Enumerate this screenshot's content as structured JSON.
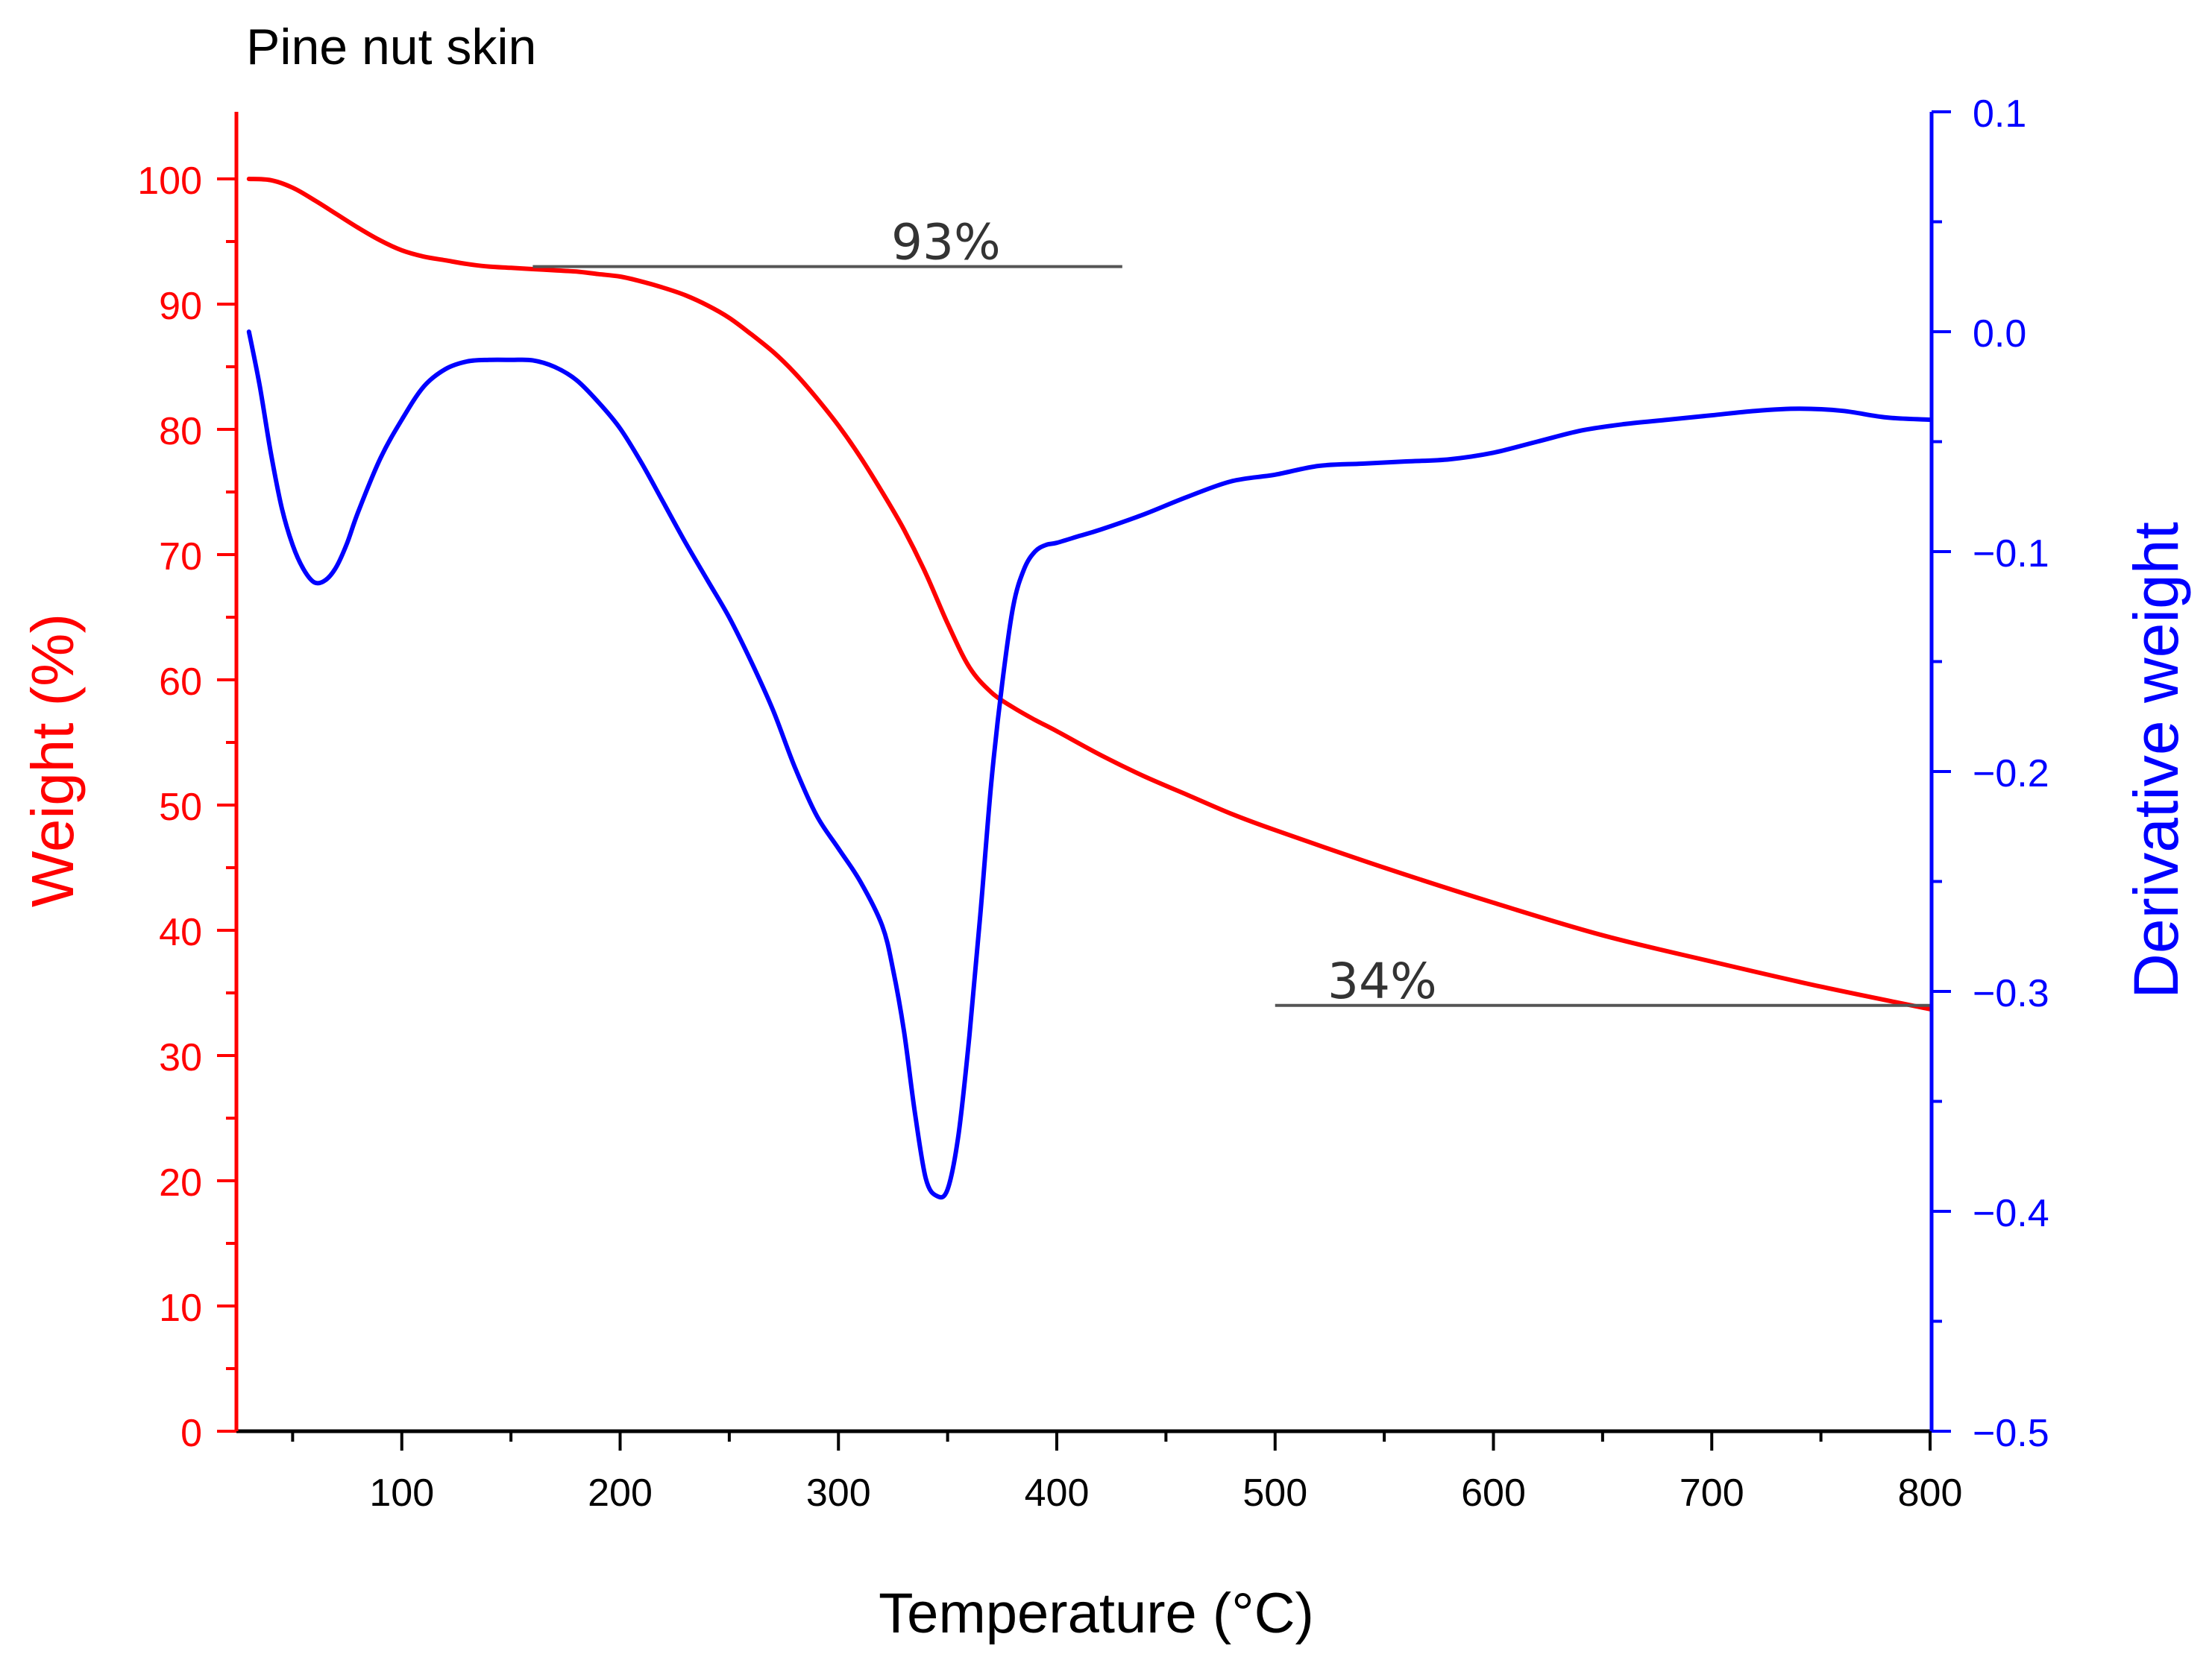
{
  "chart_data": {
    "type": "line",
    "title": "Pine nut skin",
    "xlabel": "Temperature (°C)",
    "xlim": [
      25,
      800
    ],
    "xticks": [
      100,
      200,
      300,
      400,
      500,
      600,
      700,
      800
    ],
    "xtick_labels": [
      "100",
      "200",
      "300",
      "400",
      "500",
      "600",
      "700",
      "800"
    ],
    "y_left": {
      "label": "Weight (%)",
      "ylim": [
        0,
        100
      ],
      "ticks": [
        0,
        10,
        20,
        30,
        40,
        50,
        60,
        70,
        80,
        90,
        100
      ],
      "tick_labels": [
        "0",
        "10",
        "20",
        "30",
        "40",
        "50",
        "60",
        "70",
        "80",
        "90",
        "100"
      ],
      "color": "#ff0000"
    },
    "y_right": {
      "label": "Derivative weight",
      "ylim": [
        -0.5,
        0.1
      ],
      "ticks": [
        -0.5,
        -0.4,
        -0.3,
        -0.2,
        -0.1,
        0.0,
        0.1
      ],
      "tick_labels": [
        "−0.5",
        "−0.4",
        "−0.3",
        "−0.2",
        "−0.1",
        "0.0",
        "0.1"
      ],
      "color": "#0000ff"
    },
    "series": [
      {
        "name": "Weight",
        "axis": "left",
        "color": "#ff0000",
        "x": [
          30,
          40,
          50,
          60,
          70,
          80,
          90,
          100,
          110,
          120,
          130,
          140,
          150,
          160,
          170,
          180,
          190,
          200,
          210,
          220,
          230,
          240,
          250,
          260,
          270,
          280,
          290,
          300,
          310,
          320,
          330,
          340,
          350,
          360,
          370,
          380,
          390,
          400,
          420,
          440,
          460,
          480,
          500,
          550,
          600,
          650,
          700,
          750,
          800
        ],
        "values": [
          100,
          99.9,
          99.3,
          98.3,
          97.2,
          96.1,
          95.1,
          94.3,
          93.8,
          93.5,
          93.2,
          93.0,
          92.9,
          92.8,
          92.7,
          92.6,
          92.4,
          92.2,
          91.8,
          91.3,
          90.7,
          89.9,
          88.9,
          87.6,
          86.2,
          84.5,
          82.5,
          80.3,
          77.8,
          75.0,
          72.0,
          68.5,
          64.5,
          61.0,
          59.0,
          57.8,
          56.8,
          55.9,
          54.0,
          52.3,
          50.8,
          49.3,
          48.0,
          45.0,
          42.2,
          39.6,
          37.5,
          35.5,
          33.7
        ]
      },
      {
        "name": "Derivative weight",
        "axis": "right",
        "color": "#0000ff",
        "x": [
          30,
          35,
          40,
          45,
          50,
          55,
          60,
          65,
          70,
          75,
          80,
          90,
          100,
          110,
          120,
          130,
          140,
          150,
          160,
          170,
          180,
          190,
          200,
          210,
          220,
          230,
          240,
          250,
          260,
          270,
          280,
          290,
          300,
          310,
          320,
          325,
          330,
          335,
          340,
          345,
          350,
          355,
          360,
          365,
          370,
          375,
          380,
          385,
          390,
          395,
          400,
          410,
          420,
          440,
          460,
          480,
          500,
          520,
          540,
          560,
          580,
          600,
          620,
          640,
          660,
          680,
          700,
          720,
          740,
          760,
          780,
          800
        ],
        "values": [
          0.0,
          -0.025,
          -0.055,
          -0.08,
          -0.097,
          -0.108,
          -0.114,
          -0.113,
          -0.107,
          -0.096,
          -0.082,
          -0.058,
          -0.04,
          -0.025,
          -0.017,
          -0.0135,
          -0.0128,
          -0.0128,
          -0.013,
          -0.016,
          -0.022,
          -0.032,
          -0.044,
          -0.06,
          -0.078,
          -0.096,
          -0.113,
          -0.13,
          -0.15,
          -0.172,
          -0.198,
          -0.22,
          -0.235,
          -0.25,
          -0.27,
          -0.29,
          -0.318,
          -0.355,
          -0.385,
          -0.393,
          -0.39,
          -0.365,
          -0.32,
          -0.265,
          -0.205,
          -0.16,
          -0.125,
          -0.108,
          -0.1,
          -0.097,
          -0.096,
          -0.093,
          -0.09,
          -0.083,
          -0.075,
          -0.068,
          -0.065,
          -0.061,
          -0.06,
          -0.059,
          -0.058,
          -0.055,
          -0.05,
          -0.045,
          -0.042,
          -0.04,
          -0.038,
          -0.036,
          -0.035,
          -0.036,
          -0.039,
          -0.04
        ]
      }
    ],
    "annotations": [
      {
        "text": "93%",
        "x_from": 160,
        "x_to": 430,
        "y": 93
      },
      {
        "text": "34%",
        "x_from": 500,
        "x_to": 800,
        "y": 34
      }
    ]
  }
}
